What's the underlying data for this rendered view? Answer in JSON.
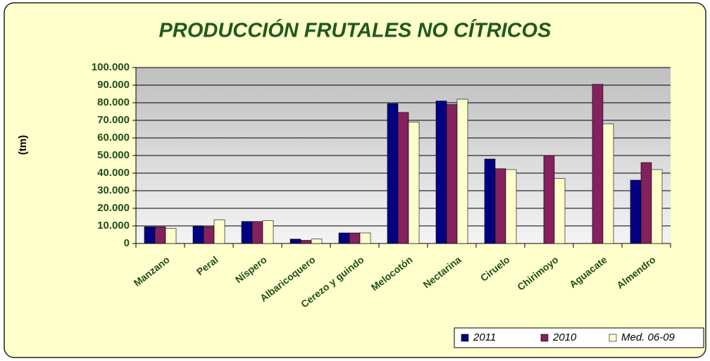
{
  "chart_data": {
    "type": "bar",
    "title": "PRODUCCIÓN FRUTALES NO CÍTRICOS",
    "y_label": "(tm)",
    "categories": [
      "Manzano",
      "Peral",
      "Níspero",
      "Albaricoquero",
      "Cerezo y guindo",
      "Melocotón",
      "Nectarina",
      "Ciruelo",
      "Chirimoyo",
      "Aguacate",
      "Almendro"
    ],
    "series": [
      {
        "name": "2011",
        "color": "#000080",
        "values": [
          9500,
          10000,
          12500,
          2500,
          6000,
          79500,
          81000,
          48000,
          null,
          null,
          36000
        ]
      },
      {
        "name": "2010",
        "color": "#84215e",
        "values": [
          9500,
          9500,
          12500,
          1800,
          6000,
          74500,
          79000,
          42500,
          50000,
          90500,
          46000
        ]
      },
      {
        "name": "Med. 06-09",
        "color": "#ffffcc",
        "values": [
          8500,
          13500,
          13000,
          2500,
          6000,
          69000,
          82000,
          42000,
          37000,
          68000,
          42000
        ]
      }
    ],
    "ylim": [
      0,
      100000
    ],
    "yticks": [
      0,
      {
        "value": 10000,
        "label": "10.000"
      },
      {
        "value": 20000,
        "label": "20.000"
      },
      {
        "value": 30000,
        "label": "30.000"
      },
      {
        "value": 40000,
        "label": "40.000"
      },
      {
        "value": 50000,
        "label": "50.000"
      },
      {
        "value": 60000,
        "label": "60.000"
      },
      {
        "value": 70000,
        "label": "70.000"
      },
      {
        "value": 80000,
        "label": "80.000"
      },
      {
        "value": 90000,
        "label": "90.000"
      },
      {
        "value": 100000,
        "label": "100.000"
      }
    ],
    "grid": true,
    "legend": "bottom-right"
  }
}
